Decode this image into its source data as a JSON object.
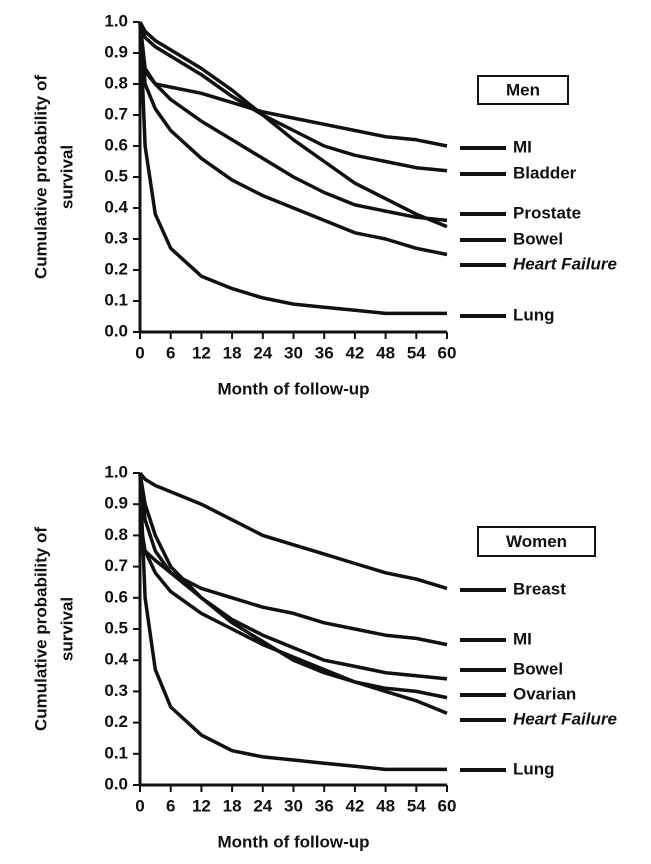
{
  "chart_data": [
    {
      "type": "line",
      "panel_label": "Men",
      "xlabel": "Month of follow-up",
      "ylabel": [
        "Cumulative probability of",
        "survival"
      ],
      "x": [
        0,
        1,
        3,
        6,
        12,
        18,
        24,
        30,
        36,
        42,
        48,
        54,
        60
      ],
      "xlim": [
        0,
        60
      ],
      "xticks": [
        0,
        6,
        12,
        18,
        24,
        30,
        36,
        42,
        48,
        54,
        60
      ],
      "ylim": [
        0,
        1
      ],
      "yticks": [
        {
          "value": 0,
          "label": "0.0"
        },
        0.1,
        0.2,
        0.3,
        0.4,
        0.5,
        0.6,
        0.7,
        0.8,
        0.9,
        {
          "value": 1,
          "label": "1.0"
        }
      ],
      "series": [
        {
          "name": "MI",
          "color": "#111111",
          "values": [
            0.9,
            0.84,
            0.8,
            0.79,
            0.77,
            0.74,
            0.71,
            0.69,
            0.67,
            0.65,
            0.63,
            0.62,
            0.6
          ]
        },
        {
          "name": "Bladder",
          "color": "#111111",
          "values": [
            1.0,
            0.95,
            0.92,
            0.89,
            0.83,
            0.76,
            0.7,
            0.65,
            0.6,
            0.57,
            0.55,
            0.53,
            0.52
          ]
        },
        {
          "name": "Prostate",
          "color": "#111111",
          "values": [
            1.0,
            0.97,
            0.94,
            0.91,
            0.85,
            0.78,
            0.7,
            0.62,
            0.55,
            0.48,
            0.43,
            0.38,
            0.34
          ]
        },
        {
          "name": "Bowel",
          "color": "#111111",
          "values": [
            1.0,
            0.85,
            0.8,
            0.75,
            0.68,
            0.62,
            0.56,
            0.5,
            0.45,
            0.41,
            0.39,
            0.37,
            0.36
          ]
        },
        {
          "name": "Heart Failure",
          "italic": true,
          "color": "#111111",
          "values": [
            1.0,
            0.8,
            0.72,
            0.65,
            0.56,
            0.49,
            0.44,
            0.4,
            0.36,
            0.32,
            0.3,
            0.27,
            0.25
          ]
        },
        {
          "name": "Lung",
          "color": "#111111",
          "values": [
            1.0,
            0.6,
            0.38,
            0.27,
            0.18,
            0.14,
            0.11,
            0.09,
            0.08,
            0.07,
            0.06,
            0.06,
            0.06
          ]
        }
      ]
    },
    {
      "type": "line",
      "panel_label": "Women",
      "xlabel": "Month of follow-up",
      "ylabel": [
        "Cumulative probability of",
        "survival"
      ],
      "x": [
        0,
        1,
        3,
        6,
        12,
        18,
        24,
        30,
        36,
        42,
        48,
        54,
        60
      ],
      "xlim": [
        0,
        60
      ],
      "xticks": [
        0,
        6,
        12,
        18,
        24,
        30,
        36,
        42,
        48,
        54,
        60
      ],
      "ylim": [
        0,
        1
      ],
      "yticks": [
        {
          "value": 0,
          "label": "0.0"
        },
        0.1,
        0.2,
        0.3,
        0.4,
        0.5,
        0.6,
        0.7,
        0.8,
        0.9,
        {
          "value": 1,
          "label": "1.0"
        }
      ],
      "series": [
        {
          "name": "Breast",
          "color": "#111111",
          "values": [
            1.0,
            0.98,
            0.96,
            0.94,
            0.9,
            0.85,
            0.8,
            0.77,
            0.74,
            0.71,
            0.68,
            0.66,
            0.63
          ]
        },
        {
          "name": "MI",
          "color": "#111111",
          "values": [
            0.8,
            0.75,
            0.72,
            0.68,
            0.63,
            0.6,
            0.57,
            0.55,
            0.52,
            0.5,
            0.48,
            0.47,
            0.45
          ]
        },
        {
          "name": "Bowel",
          "color": "#111111",
          "values": [
            1.0,
            0.85,
            0.75,
            0.68,
            0.6,
            0.53,
            0.48,
            0.44,
            0.4,
            0.38,
            0.36,
            0.35,
            0.34
          ]
        },
        {
          "name": "Ovarian",
          "color": "#111111",
          "values": [
            1.0,
            0.9,
            0.8,
            0.7,
            0.6,
            0.52,
            0.46,
            0.4,
            0.36,
            0.33,
            0.31,
            0.3,
            0.28
          ]
        },
        {
          "name": "Heart Failure",
          "italic": true,
          "color": "#111111",
          "values": [
            0.85,
            0.75,
            0.68,
            0.62,
            0.55,
            0.5,
            0.45,
            0.41,
            0.37,
            0.33,
            0.3,
            0.27,
            0.23
          ]
        },
        {
          "name": "Lung",
          "color": "#111111",
          "values": [
            1.0,
            0.6,
            0.37,
            0.25,
            0.16,
            0.11,
            0.09,
            0.08,
            0.07,
            0.06,
            0.05,
            0.05,
            0.05
          ]
        }
      ]
    }
  ]
}
